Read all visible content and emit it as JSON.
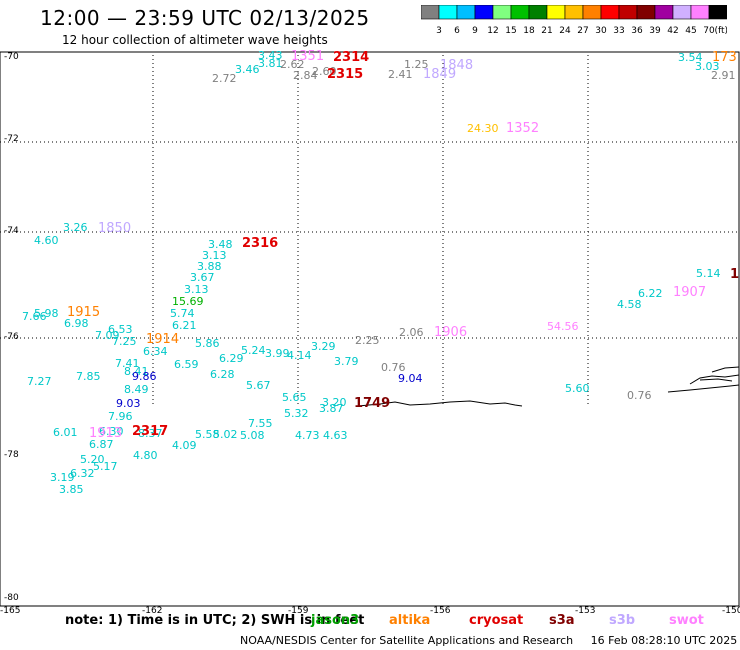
{
  "header": {
    "title": "12:00 — 23:59 UTC 02/13/2025",
    "subtitle": "12 hour collection of altimeter wave heights"
  },
  "colorbar": {
    "unit": "(ft)",
    "ticks": [
      "3",
      "6",
      "9",
      "12",
      "15",
      "18",
      "21",
      "24",
      "27",
      "30",
      "33",
      "36",
      "39",
      "42",
      "45",
      "70"
    ],
    "colors": [
      "#808080",
      "#00ffff",
      "#00bfff",
      "#0000ff",
      "#80ff80",
      "#00c000",
      "#008000",
      "#ffff00",
      "#ffc000",
      "#ff8000",
      "#ff0000",
      "#c00000",
      "#800000",
      "#a000a0",
      "#d0b0ff",
      "#ff80ff",
      "#000000"
    ]
  },
  "axes": {
    "lat_labels": [
      "-70",
      "-72",
      "-74",
      "-76",
      "-78",
      "-80"
    ],
    "lon_labels": [
      "-165",
      "-162",
      "-159",
      "-156",
      "-153",
      "-150"
    ]
  },
  "measurements": [
    {
      "t": "3.43",
      "c": "#00c8c8"
    },
    {
      "t": "3.81",
      "c": "#00c8c8"
    },
    {
      "t": "3.46",
      "c": "#00c8c8"
    },
    {
      "t": "2.72",
      "c": "#808080"
    },
    {
      "t": "2.62",
      "c": "#808080"
    },
    {
      "t": "2.84",
      "c": "#808080"
    },
    {
      "t": "2.60",
      "c": "#808080"
    },
    {
      "t": "1.25",
      "c": "#808080"
    },
    {
      "t": "2.41",
      "c": "#808080"
    },
    {
      "t": "3.54",
      "c": "#00c8c8"
    },
    {
      "t": "3.03",
      "c": "#00c8c8"
    },
    {
      "t": "2.91",
      "c": "#808080"
    },
    {
      "t": "24.30",
      "c": "#ffc000"
    },
    {
      "t": "3.26",
      "c": "#00c8c8"
    },
    {
      "t": "4.60",
      "c": "#00c8c8"
    },
    {
      "t": "3.48",
      "c": "#00c8c8"
    },
    {
      "t": "3.13",
      "c": "#00c8c8"
    },
    {
      "t": "3.88",
      "c": "#00c8c8"
    },
    {
      "t": "3.67",
      "c": "#00c8c8"
    },
    {
      "t": "3.13",
      "c": "#00c8c8"
    },
    {
      "t": "15.69",
      "c": "#00b000"
    },
    {
      "t": "5.74",
      "c": "#00c8c8"
    },
    {
      "t": "6.21",
      "c": "#00c8c8"
    },
    {
      "t": "5.98",
      "c": "#00c8c8"
    },
    {
      "t": "7.66",
      "c": "#00c8c8"
    },
    {
      "t": "6.98",
      "c": "#00c8c8"
    },
    {
      "t": "6.53",
      "c": "#00c8c8"
    },
    {
      "t": "7.09",
      "c": "#00c8c8"
    },
    {
      "t": "7.25",
      "c": "#00c8c8"
    },
    {
      "t": "6.34",
      "c": "#00c8c8"
    },
    {
      "t": "5.86",
      "c": "#00c8c8"
    },
    {
      "t": "6.29",
      "c": "#00c8c8"
    },
    {
      "t": "5.24",
      "c": "#00c8c8"
    },
    {
      "t": "3.99",
      "c": "#00c8c8"
    },
    {
      "t": "4.14",
      "c": "#00c8c8"
    },
    {
      "t": "3.29",
      "c": "#00c8c8"
    },
    {
      "t": "2.25",
      "c": "#808080"
    },
    {
      "t": "2.06",
      "c": "#808080"
    },
    {
      "t": "3.79",
      "c": "#00c8c8"
    },
    {
      "t": "0.76",
      "c": "#808080"
    },
    {
      "t": "9.04",
      "c": "#0000cc"
    },
    {
      "t": "7.41",
      "c": "#00c8c8"
    },
    {
      "t": "6.59",
      "c": "#00c8c8"
    },
    {
      "t": "8.41",
      "c": "#00c8c8"
    },
    {
      "t": "6.28",
      "c": "#00c8c8"
    },
    {
      "t": "9.86",
      "c": "#0000cc"
    },
    {
      "t": "7.27",
      "c": "#00c8c8"
    },
    {
      "t": "7.85",
      "c": "#00c8c8"
    },
    {
      "t": "8.49",
      "c": "#00c8c8"
    },
    {
      "t": "5.67",
      "c": "#00c8c8"
    },
    {
      "t": "9.03",
      "c": "#0000cc"
    },
    {
      "t": "7.96",
      "c": "#00c8c8"
    },
    {
      "t": "5.65",
      "c": "#00c8c8"
    },
    {
      "t": "5.32",
      "c": "#00c8c8"
    },
    {
      "t": "3.20",
      "c": "#00c8c8"
    },
    {
      "t": "3.87",
      "c": "#00c8c8"
    },
    {
      "t": "7.55",
      "c": "#00c8c8"
    },
    {
      "t": "6.01",
      "c": "#00c8c8"
    },
    {
      "t": "6.30",
      "c": "#00c8c8"
    },
    {
      "t": "8.37",
      "c": "#00c8c8"
    },
    {
      "t": "5.58",
      "c": "#00c8c8"
    },
    {
      "t": "5.02",
      "c": "#00c8c8"
    },
    {
      "t": "5.08",
      "c": "#00c8c8"
    },
    {
      "t": "6.87",
      "c": "#00c8c8"
    },
    {
      "t": "4.09",
      "c": "#00c8c8"
    },
    {
      "t": "4.73",
      "c": "#00c8c8"
    },
    {
      "t": "4.63",
      "c": "#00c8c8"
    },
    {
      "t": "5.20",
      "c": "#00c8c8"
    },
    {
      "t": "4.80",
      "c": "#00c8c8"
    },
    {
      "t": "6.32",
      "c": "#00c8c8"
    },
    {
      "t": "5.17",
      "c": "#00c8c8"
    },
    {
      "t": "3.19",
      "c": "#00c8c8"
    },
    {
      "t": "3.85",
      "c": "#00c8c8"
    },
    {
      "t": "5.14",
      "c": "#00c8c8"
    },
    {
      "t": "6.22",
      "c": "#00c8c8"
    },
    {
      "t": "4.58",
      "c": "#00c8c8"
    },
    {
      "t": "54.56",
      "c": "#ff80ff"
    },
    {
      "t": "5.60",
      "c": "#00c8c8"
    },
    {
      "t": "0.76",
      "c": "#808080"
    }
  ],
  "passes": [
    {
      "t": "1351",
      "c": "#ff80ff"
    },
    {
      "t": "2314",
      "c": "#e00000"
    },
    {
      "t": "2315",
      "c": "#e00000"
    },
    {
      "t": "1848",
      "c": "#c0a8ff"
    },
    {
      "t": "1849",
      "c": "#c0a8ff"
    },
    {
      "t": "173",
      "c": "#ff8000"
    },
    {
      "t": "1352",
      "c": "#ff80ff"
    },
    {
      "t": "1850",
      "c": "#c0a8ff"
    },
    {
      "t": "2316",
      "c": "#e00000"
    },
    {
      "t": "1907",
      "c": "#ff80ff"
    },
    {
      "t": "1",
      "c": "#800000"
    },
    {
      "t": "1915",
      "c": "#ff8000"
    },
    {
      "t": "1906",
      "c": "#ff80ff"
    },
    {
      "t": "1914",
      "c": "#ff8000"
    },
    {
      "t": "1749",
      "c": "#800000"
    },
    {
      "t": "2317",
      "c": "#e00000"
    },
    {
      "t": "1913",
      "c": "#ff80ff"
    }
  ],
  "legend": {
    "note": "note: 1) Time is in UTC; 2) SWH is in feet",
    "satellites": [
      {
        "name": "jason3",
        "c": "#00a000"
      },
      {
        "name": "altika",
        "c": "#ff8000"
      },
      {
        "name": "cryosat",
        "c": "#e00000"
      },
      {
        "name": "s3a",
        "c": "#800000"
      },
      {
        "name": "s3b",
        "c": "#c0a8ff"
      },
      {
        "name": "swot",
        "c": "#ff80ff"
      }
    ]
  },
  "footer": {
    "credit": "NOAA/NESDIS Center for Satellite Applications and Research",
    "timestamp": "16 Feb 08:28:10 UTC 2025"
  }
}
